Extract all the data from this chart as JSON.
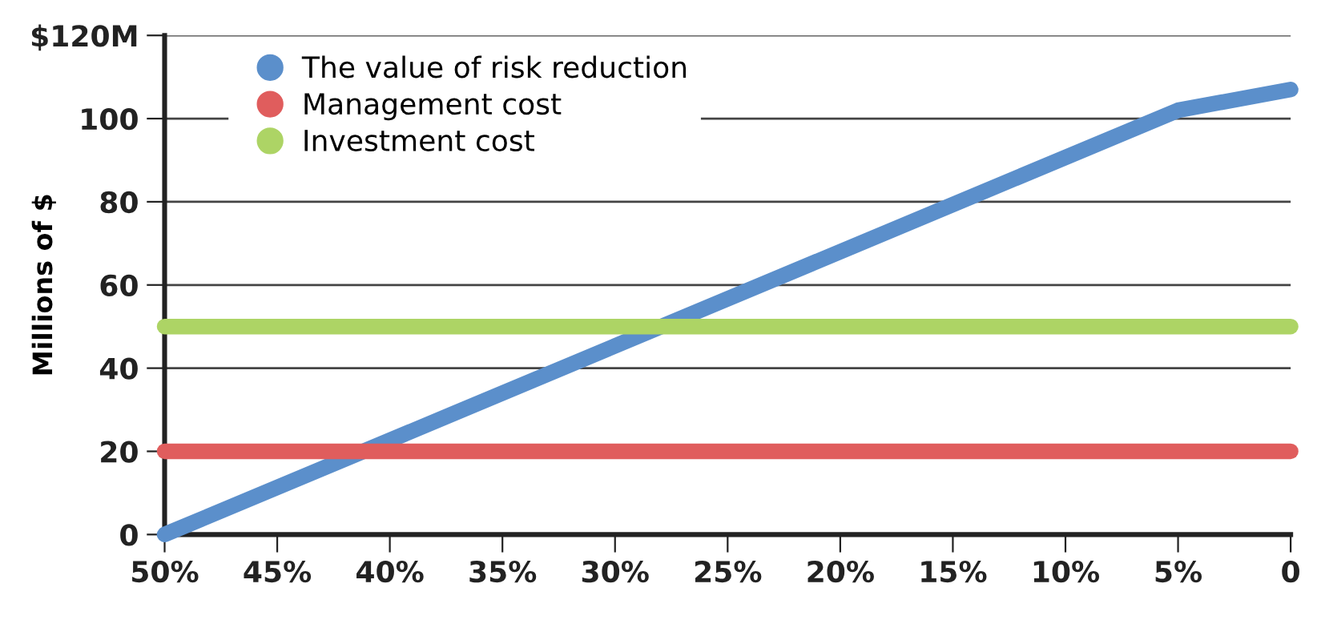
{
  "chart_data": {
    "type": "line",
    "ylabel": "Millions of $",
    "xlim": [
      50,
      0
    ],
    "xticks": [
      {
        "value": 50,
        "label": "50%"
      },
      {
        "value": 45,
        "label": "45%"
      },
      {
        "value": 40,
        "label": "40%"
      },
      {
        "value": 35,
        "label": "35%"
      },
      {
        "value": 30,
        "label": "30%"
      },
      {
        "value": 25,
        "label": "25%"
      },
      {
        "value": 20,
        "label": "20%"
      },
      {
        "value": 15,
        "label": "15%"
      },
      {
        "value": 10,
        "label": "10%"
      },
      {
        "value": 5,
        "label": "5%"
      },
      0
    ],
    "ylim": [
      0,
      120
    ],
    "yticks": [
      0,
      20,
      40,
      60,
      80,
      100,
      {
        "value": 120,
        "label": "$120M"
      }
    ],
    "grid": "y",
    "legend": "top left",
    "marker": "none",
    "line_style": "solid",
    "series": [
      {
        "name": "The value of risk reduction",
        "color": "#5b8fcb",
        "x": [
          50,
          5,
          0
        ],
        "values": [
          0,
          102,
          107
        ]
      },
      {
        "name": "Management cost",
        "color": "#e05d5d",
        "x": [
          50,
          0
        ],
        "values": [
          20,
          20
        ]
      },
      {
        "name": "Investment cost",
        "color": "#add465",
        "x": [
          50,
          0
        ],
        "values": [
          50,
          50
        ]
      }
    ]
  }
}
